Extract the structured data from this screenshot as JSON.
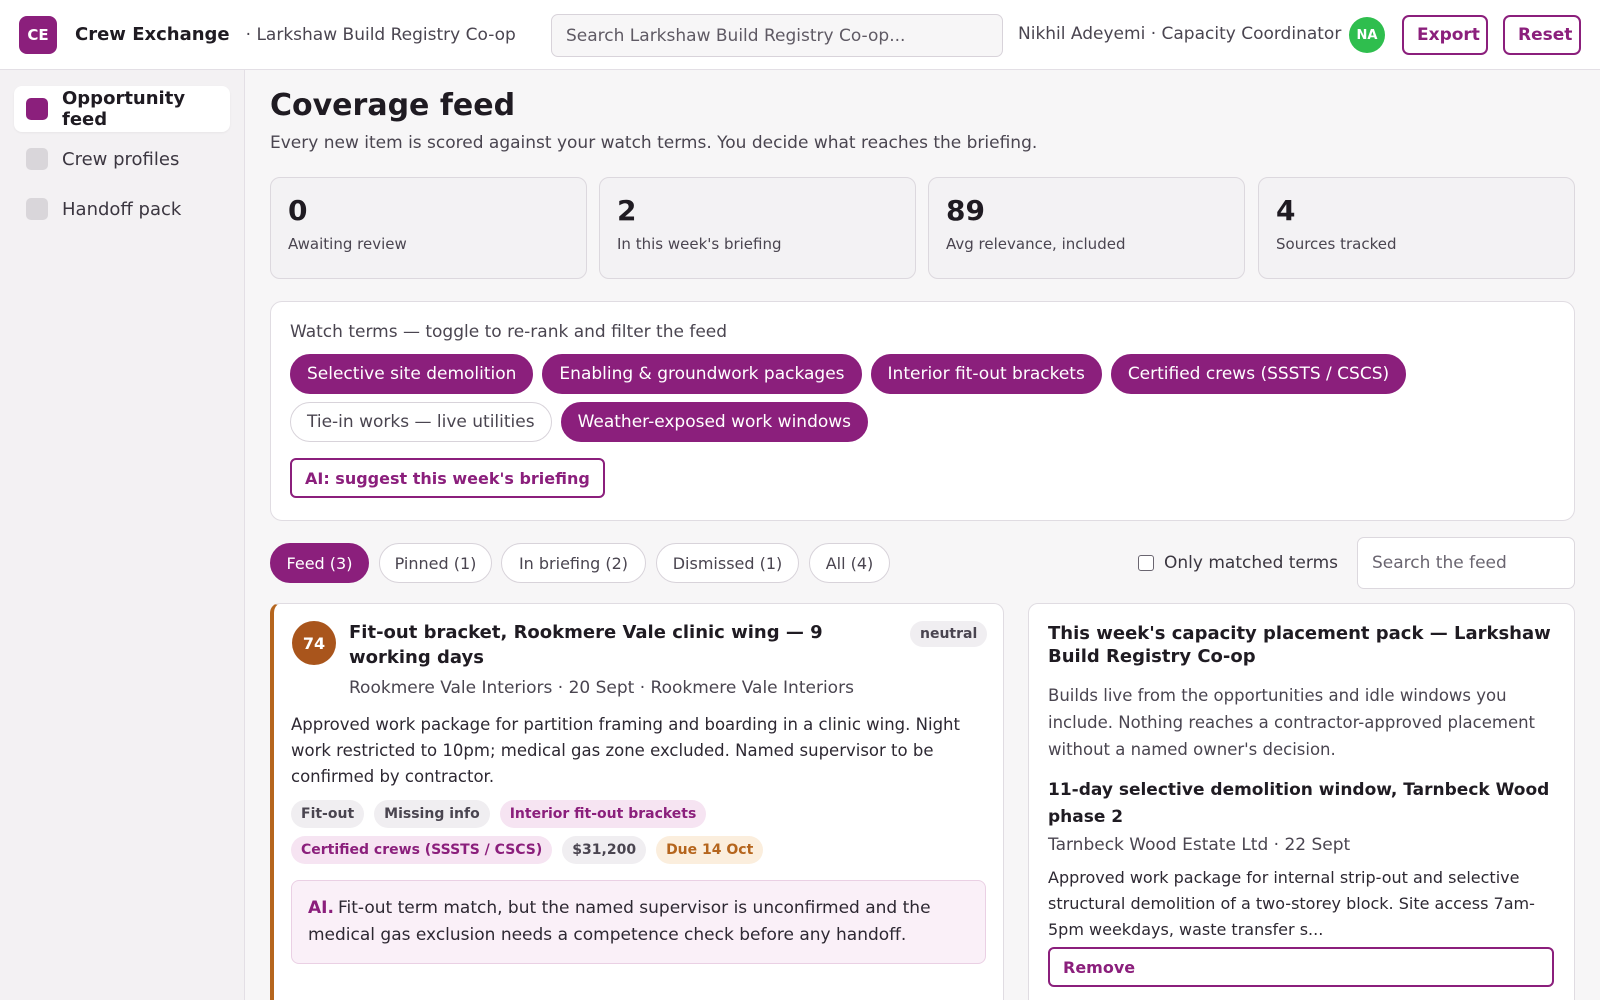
{
  "app": {
    "logo_text": "CE",
    "title": "Crew Exchange",
    "org": "· Larkshaw Build Registry Co-op"
  },
  "header": {
    "search_placeholder": "Search Larkshaw Build Registry Co-op...",
    "user": "Nikhil Adeyemi · Capacity Coordinator",
    "avatar_initials": "NA",
    "export_label": "Export",
    "reset_label": "Reset"
  },
  "sidebar": {
    "items": [
      {
        "label": "Opportunity feed",
        "active": true
      },
      {
        "label": "Crew profiles",
        "active": false
      },
      {
        "label": "Handoff pack",
        "active": false
      }
    ]
  },
  "page": {
    "title": "Coverage feed",
    "subtitle": "Every new item is scored against your watch terms. You decide what reaches the briefing."
  },
  "stats": [
    {
      "value": "0",
      "label": "Awaiting review"
    },
    {
      "value": "2",
      "label": "In this week's briefing"
    },
    {
      "value": "89",
      "label": "Avg relevance, included"
    },
    {
      "value": "4",
      "label": "Sources tracked"
    }
  ],
  "watch_terms": {
    "label": "Watch terms — toggle to re-rank and filter the feed",
    "terms": [
      {
        "label": "Selective site demolition",
        "on": true
      },
      {
        "label": "Enabling & groundwork packages",
        "on": true
      },
      {
        "label": "Interior fit-out brackets",
        "on": true
      },
      {
        "label": "Certified crews (SSSTS / CSCS)",
        "on": true
      },
      {
        "label": "Tie-in works — live utilities",
        "on": false
      },
      {
        "label": "Weather-exposed work windows",
        "on": true
      }
    ],
    "ai_button": "AI: suggest this week's briefing"
  },
  "tabs": [
    {
      "label": "Feed (3)",
      "active": true
    },
    {
      "label": "Pinned (1)",
      "active": false
    },
    {
      "label": "In briefing (2)",
      "active": false
    },
    {
      "label": "Dismissed (1)",
      "active": false
    },
    {
      "label": "All (4)",
      "active": false
    }
  ],
  "filter": {
    "matched_label": "Only matched terms",
    "search_placeholder": "Search the feed"
  },
  "feed_item": {
    "score": "74",
    "title": "Fit-out bracket, Rookmere Vale clinic wing — 9 working days",
    "tone": "neutral",
    "meta": "Rookmere Vale Interiors · 20 Sept · Rookmere Vale Interiors",
    "body": "Approved work package for partition framing and boarding in a clinic wing. Night work restricted to 10pm; medical gas zone excluded. Named supervisor to be confirmed by contractor.",
    "tags": [
      {
        "label": "Fit-out",
        "kind": "plain"
      },
      {
        "label": "Missing info",
        "kind": "plain"
      },
      {
        "label": "Interior fit-out brackets",
        "kind": "term"
      },
      {
        "label": "Certified crews (SSSTS / CSCS)",
        "kind": "term"
      },
      {
        "label": "$31,200",
        "kind": "plain"
      },
      {
        "label": "Due 14 Oct",
        "kind": "due"
      }
    ],
    "ai_prefix": "AI.",
    "ai_text": "Fit-out term match, but the named supervisor is unconfirmed and the medical gas exclusion needs a competence check before any handoff."
  },
  "pack": {
    "title": "This week's capacity placement pack — Larkshaw Build Registry Co-op",
    "description": "Builds live from the opportunities and idle windows you include. Nothing reaches a contractor-approved placement without a named owner's decision.",
    "item_title": "11-day selective demolition window, Tarnbeck Wood phase 2",
    "item_meta": "Tarnbeck Wood Estate Ltd · 22 Sept",
    "item_body": "Approved work package for internal strip-out and selective structural demolition of a two-storey block. Site access 7am-5pm weekdays, waste transfer s...",
    "remove_label": "Remove"
  },
  "colors": {
    "accent": "#8b1f7c",
    "score_badge": "#a9551c",
    "avatar": "#2fbe4e"
  }
}
